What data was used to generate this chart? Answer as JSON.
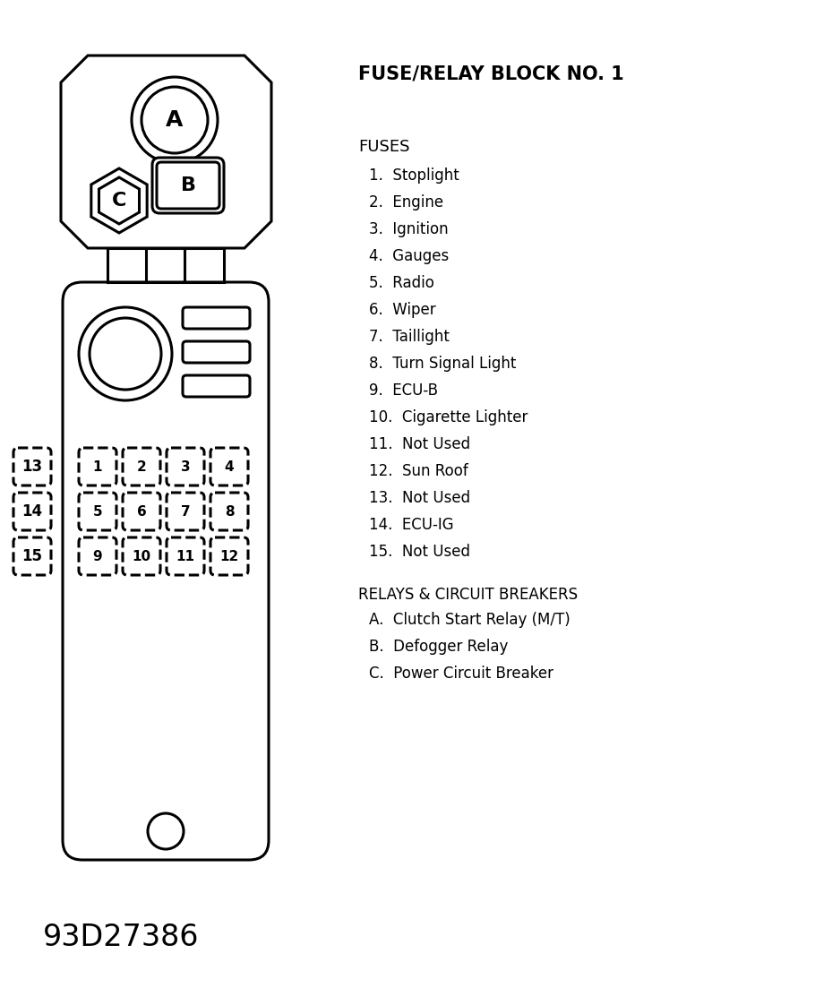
{
  "title": "FUSE/RELAY BLOCK NO. 1",
  "fuses_header": "FUSES",
  "fuses": [
    "1.  Stoplight",
    "2.  Engine",
    "3.  Ignition",
    "4.  Gauges",
    "5.  Radio",
    "6.  Wiper",
    "7.  Taillight",
    "8.  Turn Signal Light",
    "9.  ECU-B",
    "10.  Cigarette Lighter",
    "11.  Not Used",
    "12.  Sun Roof",
    "13.  Not Used",
    "14.  ECU-IG",
    "15.  Not Used"
  ],
  "relays_header": "RELAYS & CIRCUIT BREAKERS",
  "relays": [
    "A.  Clutch Start Relay (M/T)",
    "B.  Defogger Relay",
    "C.  Power Circuit Breaker"
  ],
  "diagram_code": "93D27386",
  "bg_color": "#ffffff",
  "line_color": "#000000"
}
